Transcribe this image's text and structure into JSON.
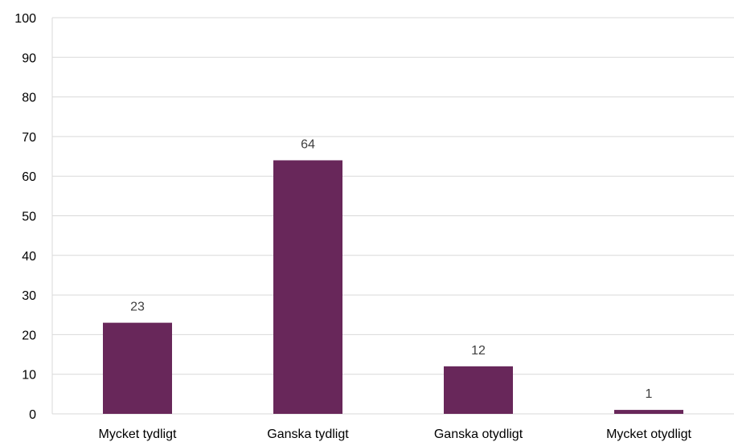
{
  "chart_data": {
    "type": "bar",
    "title": "",
    "xlabel": "",
    "ylabel": "",
    "categories": [
      "Mycket tydligt",
      "Ganska tydligt",
      "Ganska otydligt",
      "Mycket otydligt"
    ],
    "values": [
      23,
      64,
      12,
      1
    ],
    "data_labels": [
      "23",
      "64",
      "12",
      "1"
    ],
    "ylim": [
      0,
      100
    ],
    "yticks": [
      0,
      10,
      20,
      30,
      40,
      50,
      60,
      70,
      80,
      90,
      100
    ],
    "grid": true,
    "legend": "none",
    "colors": {
      "bar": "#68275a",
      "grid": "#d9d9d9",
      "tick_text": "#000000",
      "data_label": "#404040",
      "axis_line": "#d9d9d9"
    }
  }
}
